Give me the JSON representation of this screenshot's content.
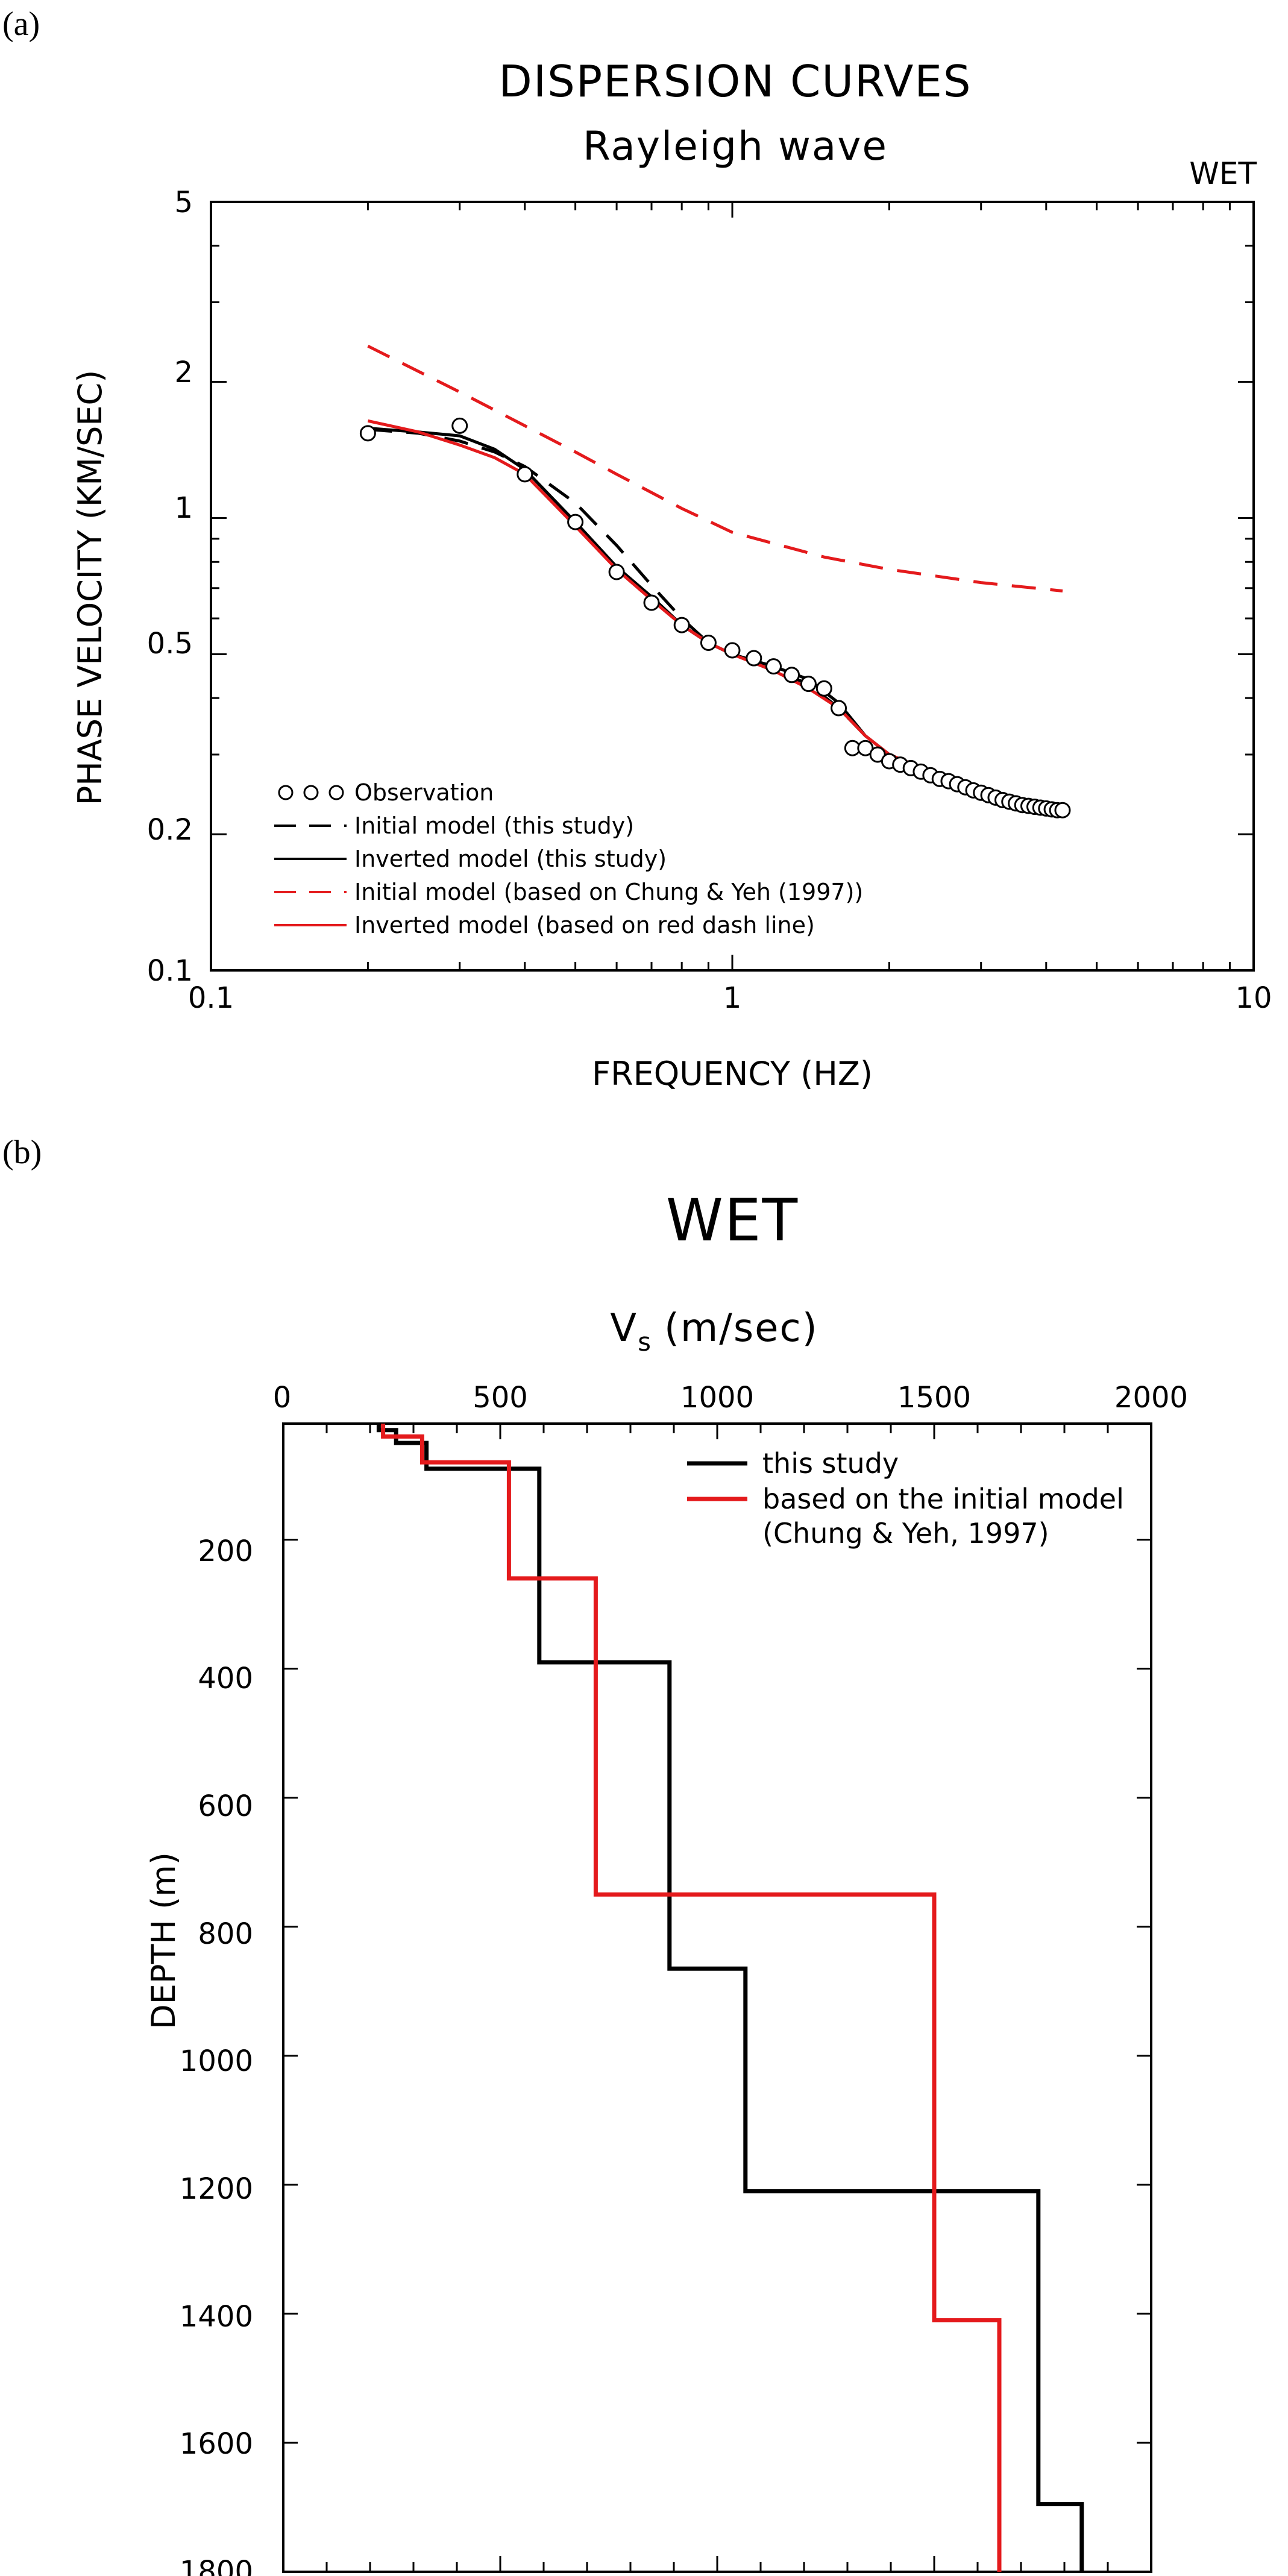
{
  "panel_a": {
    "label": "(a)",
    "title": "DISPERSION CURVES",
    "subtitle": "Rayleigh wave",
    "station": "WET",
    "xlabel": "FREQUENCY (HZ)",
    "ylabel": "PHASE VELOCITY (KM/SEC)",
    "x_ticks": [
      "0.1",
      "1",
      "10"
    ],
    "y_ticks": [
      "0.1",
      "0.2",
      "0.5",
      "1",
      "2",
      "5"
    ],
    "legend": [
      {
        "label": "Observation",
        "style": "circles",
        "color": "#000000"
      },
      {
        "label": "Initial model (this study)",
        "style": "dash",
        "color": "#000000"
      },
      {
        "label": "Inverted model (this study)",
        "style": "solid",
        "color": "#000000"
      },
      {
        "label": "Initial model (based on Chung & Yeh (1997))",
        "style": "dash",
        "color": "#e41a1c"
      },
      {
        "label": "Inverted model (based on red dash line)",
        "style": "solid",
        "color": "#e41a1c"
      }
    ]
  },
  "panel_b": {
    "label": "(b)",
    "title": "WET",
    "xlabel_main": "V",
    "xlabel_sub": "s",
    "xlabel_unit": "(m/sec)",
    "ylabel": "DEPTH (m)",
    "x_ticks": [
      "0",
      "500",
      "1000",
      "1500",
      "2000"
    ],
    "y_ticks": [
      "200",
      "400",
      "600",
      "800",
      "1000",
      "1200",
      "1400",
      "1600",
      "1800"
    ],
    "legend": [
      {
        "label": "this study",
        "color": "#000000"
      },
      {
        "label": "based on the initial model",
        "color": "#e41a1c"
      },
      {
        "label": "(Chung & Yeh, 1997)",
        "color": null
      }
    ]
  },
  "chart_data": [
    {
      "type": "line",
      "title": "DISPERSION CURVES",
      "subtitle": "Rayleigh wave",
      "xlabel": "FREQUENCY (HZ)",
      "ylabel": "PHASE VELOCITY (KM/SEC)",
      "xscale": "log",
      "yscale": "log",
      "xlim": [
        0.1,
        10
      ],
      "ylim": [
        0.1,
        5
      ],
      "grid": false,
      "legend_position": "bottom-left",
      "series": [
        {
          "name": "Observation",
          "kind": "scatter",
          "x": [
            0.2,
            0.3,
            0.4,
            0.5,
            0.6,
            0.7,
            0.8,
            0.9,
            1.0,
            1.1,
            1.2,
            1.3,
            1.4,
            1.5,
            1.6,
            1.7,
            1.8,
            1.9,
            2.0,
            2.1,
            2.2,
            2.3,
            2.4,
            2.5,
            2.6,
            2.7,
            2.8,
            2.9,
            3.0,
            3.1,
            3.2,
            3.3,
            3.4,
            3.5,
            3.6,
            3.7,
            3.8,
            3.9,
            4.0,
            4.1,
            4.2,
            4.3
          ],
          "y": [
            1.54,
            1.6,
            1.25,
            0.98,
            0.76,
            0.65,
            0.58,
            0.53,
            0.51,
            0.49,
            0.47,
            0.45,
            0.43,
            0.42,
            0.38,
            0.31,
            0.31,
            0.3,
            0.29,
            0.285,
            0.28,
            0.275,
            0.27,
            0.265,
            0.262,
            0.258,
            0.254,
            0.25,
            0.247,
            0.244,
            0.241,
            0.238,
            0.236,
            0.234,
            0.232,
            0.231,
            0.23,
            0.229,
            0.228,
            0.227,
            0.226,
            0.226
          ]
        },
        {
          "name": "Initial model (this study)",
          "kind": "dash",
          "color": "#000000",
          "x": [
            0.2,
            0.25,
            0.3,
            0.35,
            0.4,
            0.5,
            0.6,
            0.7,
            0.8,
            0.9,
            1.0,
            1.2,
            1.4,
            1.6,
            1.8,
            2.0,
            2.5,
            3.0,
            3.5,
            4.0,
            4.3
          ],
          "y": [
            1.57,
            1.54,
            1.48,
            1.4,
            1.3,
            1.08,
            0.87,
            0.71,
            0.6,
            0.53,
            0.5,
            0.46,
            0.43,
            0.38,
            0.33,
            0.3,
            0.27,
            0.25,
            0.235,
            0.227,
            0.224
          ]
        },
        {
          "name": "Inverted model (this study)",
          "kind": "solid",
          "color": "#000000",
          "x": [
            0.2,
            0.25,
            0.3,
            0.35,
            0.4,
            0.5,
            0.6,
            0.7,
            0.8,
            0.9,
            1.0,
            1.2,
            1.4,
            1.6,
            1.8,
            2.0,
            2.5,
            3.0,
            3.5,
            4.0,
            4.3
          ],
          "y": [
            1.58,
            1.55,
            1.52,
            1.42,
            1.28,
            0.98,
            0.78,
            0.67,
            0.58,
            0.53,
            0.5,
            0.47,
            0.44,
            0.39,
            0.33,
            0.3,
            0.27,
            0.25,
            0.236,
            0.228,
            0.225
          ]
        },
        {
          "name": "Initial model (based on Chung & Yeh (1997))",
          "kind": "dash",
          "color": "#e41a1c",
          "x": [
            0.2,
            0.3,
            0.4,
            0.5,
            0.6,
            0.8,
            1.0,
            1.5,
            2.0,
            3.0,
            4.3
          ],
          "y": [
            2.4,
            1.9,
            1.6,
            1.4,
            1.25,
            1.05,
            0.93,
            0.82,
            0.77,
            0.72,
            0.69
          ]
        },
        {
          "name": "Inverted model (based on red dash line)",
          "kind": "solid",
          "color": "#e41a1c",
          "x": [
            0.2,
            0.25,
            0.3,
            0.35,
            0.4,
            0.5,
            0.6,
            0.7,
            0.8,
            0.9,
            1.0,
            1.2,
            1.4,
            1.6,
            1.8,
            2.0,
            2.5,
            3.0,
            3.5,
            4.0,
            4.3
          ],
          "y": [
            1.64,
            1.55,
            1.45,
            1.36,
            1.25,
            0.96,
            0.77,
            0.66,
            0.58,
            0.53,
            0.5,
            0.46,
            0.42,
            0.38,
            0.33,
            0.3,
            0.27,
            0.25,
            0.236,
            0.228,
            0.225
          ]
        }
      ]
    },
    {
      "type": "line",
      "title": "WET",
      "xlabel": "Vs (m/sec)",
      "ylabel": "DEPTH (m)",
      "xlim": [
        0,
        2000
      ],
      "ylim": [
        0,
        1800
      ],
      "y_inverted": true,
      "x_axis_position": "top",
      "grid": false,
      "legend_position": "top-right",
      "series": [
        {
          "name": "this study",
          "kind": "step",
          "color": "#000000",
          "layers": [
            {
              "top": 0,
              "bottom": 30,
              "vs": 220
            },
            {
              "top": 30,
              "bottom": 50,
              "vs": 260
            },
            {
              "top": 50,
              "bottom": 90,
              "vs": 330
            },
            {
              "top": 90,
              "bottom": 390,
              "vs": 590
            },
            {
              "top": 390,
              "bottom": 865,
              "vs": 890
            },
            {
              "top": 865,
              "bottom": 1210,
              "vs": 1065
            },
            {
              "top": 1210,
              "bottom": 1695,
              "vs": 1740
            },
            {
              "top": 1695,
              "bottom": 1800,
              "vs": 1840
            }
          ]
        },
        {
          "name": "based on the initial model",
          "kind": "step",
          "color": "#e41a1c",
          "layers": [
            {
              "top": 0,
              "bottom": 40,
              "vs": 230
            },
            {
              "top": 40,
              "bottom": 80,
              "vs": 320
            },
            {
              "top": 80,
              "bottom": 260,
              "vs": 520
            },
            {
              "top": 260,
              "bottom": 750,
              "vs": 720
            },
            {
              "top": 750,
              "bottom": 1410,
              "vs": 1500
            },
            {
              "top": 1410,
              "bottom": 1800,
              "vs": 1650
            }
          ]
        }
      ]
    }
  ]
}
